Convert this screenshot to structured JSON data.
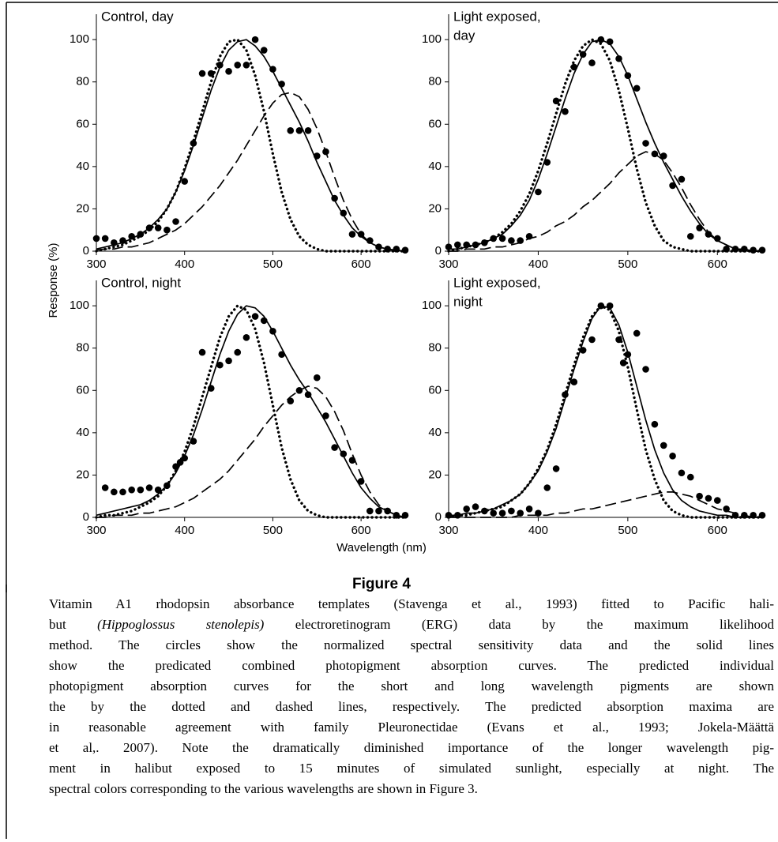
{
  "chart_data": [
    {
      "type": "line",
      "title": [
        "Control, day"
      ],
      "xlim": [
        300,
        650
      ],
      "ylim": [
        0,
        112
      ],
      "xticks": [
        300,
        400,
        500,
        600
      ],
      "yticks": [
        0,
        20,
        40,
        60,
        80,
        100
      ],
      "x": [
        300,
        310,
        320,
        330,
        340,
        350,
        360,
        370,
        380,
        390,
        400,
        410,
        420,
        430,
        440,
        450,
        460,
        470,
        480,
        490,
        500,
        510,
        520,
        530,
        540,
        550,
        560,
        570,
        580,
        590,
        600,
        610,
        620,
        630,
        640,
        650
      ],
      "series": [
        {
          "style": "markers",
          "color": "#000",
          "x": [
            300,
            310,
            320,
            330,
            340,
            350,
            360,
            370,
            380,
            390,
            400,
            410,
            420,
            430,
            440,
            450,
            460,
            470,
            480,
            490,
            500,
            510,
            520,
            530,
            540,
            550,
            560,
            570,
            580,
            590,
            600,
            610,
            620,
            630,
            640,
            650
          ],
          "values": [
            6,
            6,
            4,
            5,
            7,
            8,
            11,
            11,
            10,
            14,
            33,
            51,
            84,
            84,
            88,
            85,
            88,
            88,
            100,
            95,
            86,
            79,
            57,
            57,
            57,
            45,
            47,
            25,
            18,
            8,
            8,
            5,
            2,
            1,
            1,
            0.5
          ]
        },
        {
          "style": "solid",
          "color": "#000",
          "values": [
            1,
            2,
            3,
            4,
            6,
            8,
            11,
            15,
            20,
            28,
            38,
            50,
            63,
            76,
            87,
            95,
            99,
            100,
            97,
            92,
            85,
            77,
            69,
            61,
            52,
            42,
            33,
            24,
            17,
            11,
            7,
            4,
            2,
            1,
            0.5,
            0
          ]
        },
        {
          "style": "dotted",
          "color": "#000",
          "values": [
            0,
            1,
            2,
            3,
            5,
            7,
            10,
            14,
            20,
            28,
            39,
            52,
            66,
            80,
            92,
            99,
            100,
            95,
            83,
            66,
            46,
            28,
            15,
            7,
            3,
            1,
            0,
            0,
            0,
            0,
            0,
            0,
            0,
            0,
            0,
            0
          ]
        },
        {
          "style": "dashed",
          "color": "#000",
          "values": [
            0.5,
            1,
            1,
            2,
            2,
            3,
            4,
            6,
            8,
            10,
            13,
            17,
            21,
            26,
            31,
            37,
            43,
            50,
            57,
            64,
            70,
            74,
            75,
            73,
            67,
            58,
            47,
            35,
            24,
            15,
            8,
            4,
            2,
            1,
            0,
            0
          ]
        }
      ]
    },
    {
      "type": "line",
      "title": [
        "Light exposed,",
        "day"
      ],
      "xlim": [
        300,
        650
      ],
      "ylim": [
        0,
        112
      ],
      "xticks": [
        300,
        400,
        500,
        600
      ],
      "yticks": [
        0,
        20,
        40,
        60,
        80,
        100
      ],
      "x": [
        300,
        310,
        320,
        330,
        340,
        350,
        360,
        370,
        380,
        390,
        400,
        410,
        420,
        430,
        440,
        450,
        460,
        470,
        480,
        490,
        500,
        510,
        520,
        530,
        540,
        550,
        560,
        570,
        580,
        590,
        600,
        610,
        620,
        630,
        640,
        650
      ],
      "series": [
        {
          "style": "markers",
          "color": "#000",
          "x": [
            300,
            310,
            320,
            330,
            340,
            350,
            360,
            370,
            380,
            390,
            400,
            410,
            420,
            430,
            440,
            450,
            460,
            470,
            480,
            490,
            500,
            510,
            520,
            530,
            540,
            550,
            560,
            570,
            580,
            590,
            600,
            610,
            620,
            630,
            640,
            650
          ],
          "values": [
            2,
            3,
            3,
            3,
            4,
            6,
            6,
            5,
            5,
            7,
            28,
            42,
            71,
            66,
            87,
            93,
            89,
            100,
            99,
            91,
            83,
            77,
            51,
            46,
            45,
            31,
            34,
            7,
            11,
            8,
            6,
            1,
            1,
            1,
            0.5,
            0.5
          ]
        },
        {
          "style": "solid",
          "color": "#000",
          "values": [
            1,
            1,
            2,
            3,
            4,
            6,
            8,
            12,
            17,
            24,
            34,
            46,
            59,
            72,
            84,
            93,
            99,
            100,
            98,
            92,
            83,
            72,
            61,
            51,
            42,
            34,
            26,
            19,
            13,
            8,
            5,
            3,
            1,
            1,
            0,
            0
          ]
        },
        {
          "style": "dotted",
          "color": "#000",
          "values": [
            0,
            1,
            2,
            3,
            4,
            6,
            9,
            13,
            19,
            27,
            38,
            51,
            65,
            79,
            90,
            97,
            100,
            98,
            90,
            76,
            58,
            39,
            23,
            12,
            5,
            2,
            1,
            0,
            0,
            0,
            0,
            0,
            0,
            0,
            0,
            0
          ]
        },
        {
          "style": "dashed",
          "color": "#000",
          "values": [
            0,
            0,
            1,
            1,
            1,
            2,
            2,
            3,
            4,
            6,
            7,
            9,
            12,
            14,
            17,
            21,
            24,
            28,
            32,
            37,
            41,
            45,
            47,
            46,
            43,
            37,
            30,
            22,
            15,
            9,
            5,
            3,
            1,
            0,
            0,
            0
          ]
        }
      ]
    },
    {
      "type": "line",
      "title": [
        "Control, night"
      ],
      "xlim": [
        300,
        650
      ],
      "ylim": [
        0,
        112
      ],
      "xticks": [
        300,
        400,
        500,
        600
      ],
      "yticks": [
        0,
        20,
        40,
        60,
        80,
        100
      ],
      "x": [
        300,
        310,
        320,
        330,
        340,
        350,
        360,
        370,
        380,
        390,
        400,
        410,
        420,
        430,
        440,
        450,
        460,
        470,
        480,
        490,
        500,
        510,
        520,
        530,
        540,
        550,
        560,
        570,
        580,
        590,
        600,
        610,
        620,
        630,
        640,
        650
      ],
      "series": [
        {
          "style": "markers",
          "color": "#000",
          "x": [
            310,
            320,
            330,
            340,
            350,
            360,
            370,
            380,
            390,
            395,
            400,
            410,
            420,
            430,
            440,
            450,
            460,
            470,
            480,
            490,
            500,
            510,
            520,
            530,
            540,
            550,
            560,
            570,
            580,
            590,
            600,
            610,
            620,
            630,
            640,
            650
          ],
          "values": [
            14,
            12,
            12,
            13,
            13,
            14,
            13,
            15,
            24,
            26,
            28,
            36,
            78,
            61,
            72,
            74,
            78,
            85,
            95,
            93,
            88,
            77,
            55,
            60,
            58,
            66,
            48,
            33,
            30,
            27,
            17,
            3,
            3,
            3,
            1,
            1
          ]
        },
        {
          "style": "solid",
          "color": "#000",
          "values": [
            1,
            2,
            3,
            4,
            5,
            6,
            8,
            11,
            15,
            21,
            29,
            39,
            51,
            64,
            77,
            88,
            96,
            100,
            99,
            95,
            88,
            80,
            72,
            65,
            59,
            52,
            45,
            37,
            29,
            21,
            14,
            9,
            5,
            3,
            1,
            0
          ]
        },
        {
          "style": "dotted",
          "color": "#000",
          "values": [
            0,
            1,
            1,
            2,
            3,
            5,
            7,
            10,
            15,
            22,
            31,
            43,
            57,
            71,
            85,
            95,
            100,
            98,
            89,
            73,
            53,
            33,
            18,
            8,
            3,
            1,
            0,
            0,
            0,
            0,
            0,
            0,
            0,
            0,
            0,
            0
          ]
        },
        {
          "style": "dashed",
          "color": "#000",
          "values": [
            0,
            0,
            1,
            1,
            1,
            2,
            2,
            3,
            4,
            5,
            7,
            9,
            12,
            15,
            18,
            22,
            27,
            32,
            37,
            43,
            48,
            53,
            57,
            60,
            62,
            61,
            57,
            50,
            41,
            30,
            20,
            12,
            6,
            3,
            1,
            0
          ]
        }
      ]
    },
    {
      "type": "line",
      "title": [
        "Light exposed,",
        "night"
      ],
      "xlim": [
        300,
        650
      ],
      "ylim": [
        0,
        112
      ],
      "xticks": [
        300,
        400,
        500,
        600
      ],
      "yticks": [
        0,
        20,
        40,
        60,
        80,
        100
      ],
      "x": [
        300,
        310,
        320,
        330,
        340,
        350,
        360,
        370,
        380,
        390,
        400,
        410,
        420,
        430,
        440,
        450,
        460,
        470,
        480,
        490,
        500,
        510,
        520,
        530,
        540,
        550,
        560,
        570,
        580,
        590,
        600,
        610,
        620,
        630,
        640,
        650
      ],
      "series": [
        {
          "style": "markers",
          "color": "#000",
          "x": [
            300,
            310,
            320,
            330,
            340,
            350,
            360,
            370,
            380,
            390,
            400,
            410,
            420,
            430,
            440,
            450,
            460,
            470,
            480,
            490,
            495,
            500,
            510,
            520,
            530,
            540,
            550,
            560,
            570,
            580,
            590,
            600,
            610,
            620,
            630,
            640,
            650
          ],
          "values": [
            1,
            1,
            4,
            5,
            3,
            2,
            2,
            3,
            2,
            4,
            2,
            14,
            23,
            58,
            64,
            79,
            84,
            100,
            100,
            84,
            73,
            77,
            87,
            70,
            44,
            34,
            29,
            21,
            19,
            10,
            9,
            8,
            4,
            1,
            1,
            1,
            1
          ]
        },
        {
          "style": "solid",
          "color": "#000",
          "values": [
            1,
            1,
            2,
            2,
            3,
            4,
            6,
            8,
            11,
            16,
            22,
            31,
            42,
            56,
            70,
            83,
            94,
            100,
            99,
            91,
            78,
            62,
            46,
            32,
            21,
            13,
            8,
            5,
            3,
            2,
            1,
            1,
            0,
            0,
            0,
            0
          ]
        },
        {
          "style": "dotted",
          "color": "#000",
          "values": [
            0,
            1,
            1,
            2,
            3,
            4,
            5,
            8,
            11,
            16,
            23,
            32,
            44,
            58,
            72,
            85,
            95,
            100,
            98,
            88,
            71,
            51,
            32,
            18,
            8,
            3,
            1,
            0,
            0,
            0,
            0,
            0,
            0,
            0,
            0,
            0
          ]
        },
        {
          "style": "dashed",
          "color": "#000",
          "values": [
            0,
            0,
            0,
            0,
            0,
            0,
            0,
            0,
            1,
            1,
            1,
            1,
            2,
            2,
            3,
            4,
            4,
            5,
            6,
            7,
            8,
            9,
            10,
            11,
            12,
            12,
            11,
            10,
            8,
            6,
            4,
            3,
            2,
            1,
            0,
            0
          ]
        }
      ]
    }
  ],
  "figure": {
    "ylabel": "Response (%)",
    "xlabel": "Wavelength (nm)",
    "label": "Figure 4",
    "caption_lines": [
      "Vitamin A1 rhodopsin absorbance templates (Stavenga et al., 1993) fitted to Pacific hali-",
      [
        "but ",
        {
          "text": "(Hippoglossus stenolepis)",
          "italic": true
        },
        " electroretinogram (ERG) data by the maximum likelihood"
      ],
      "method. The circles show the normalized spectral sensitivity data and the solid lines",
      "show the predicated combined photopigment absorption curves. The predicted individual",
      "photopigment absorption curves for the short and long wavelength pigments are shown",
      "the by the dotted and dashed lines, respectively. The predicted absorption maxima are",
      "in reasonable agreement with family Pleuronectidae (Evans et al., 1993; Jokela-Määttä",
      "et al,. 2007). Note the dramatically diminished importance of the longer wavelength pig-",
      "ment in halibut exposed to 15 minutes of simulated sunlight, especially at night. The",
      "spectral colors corresponding to the various wavelengths are shown in Figure 3."
    ]
  }
}
